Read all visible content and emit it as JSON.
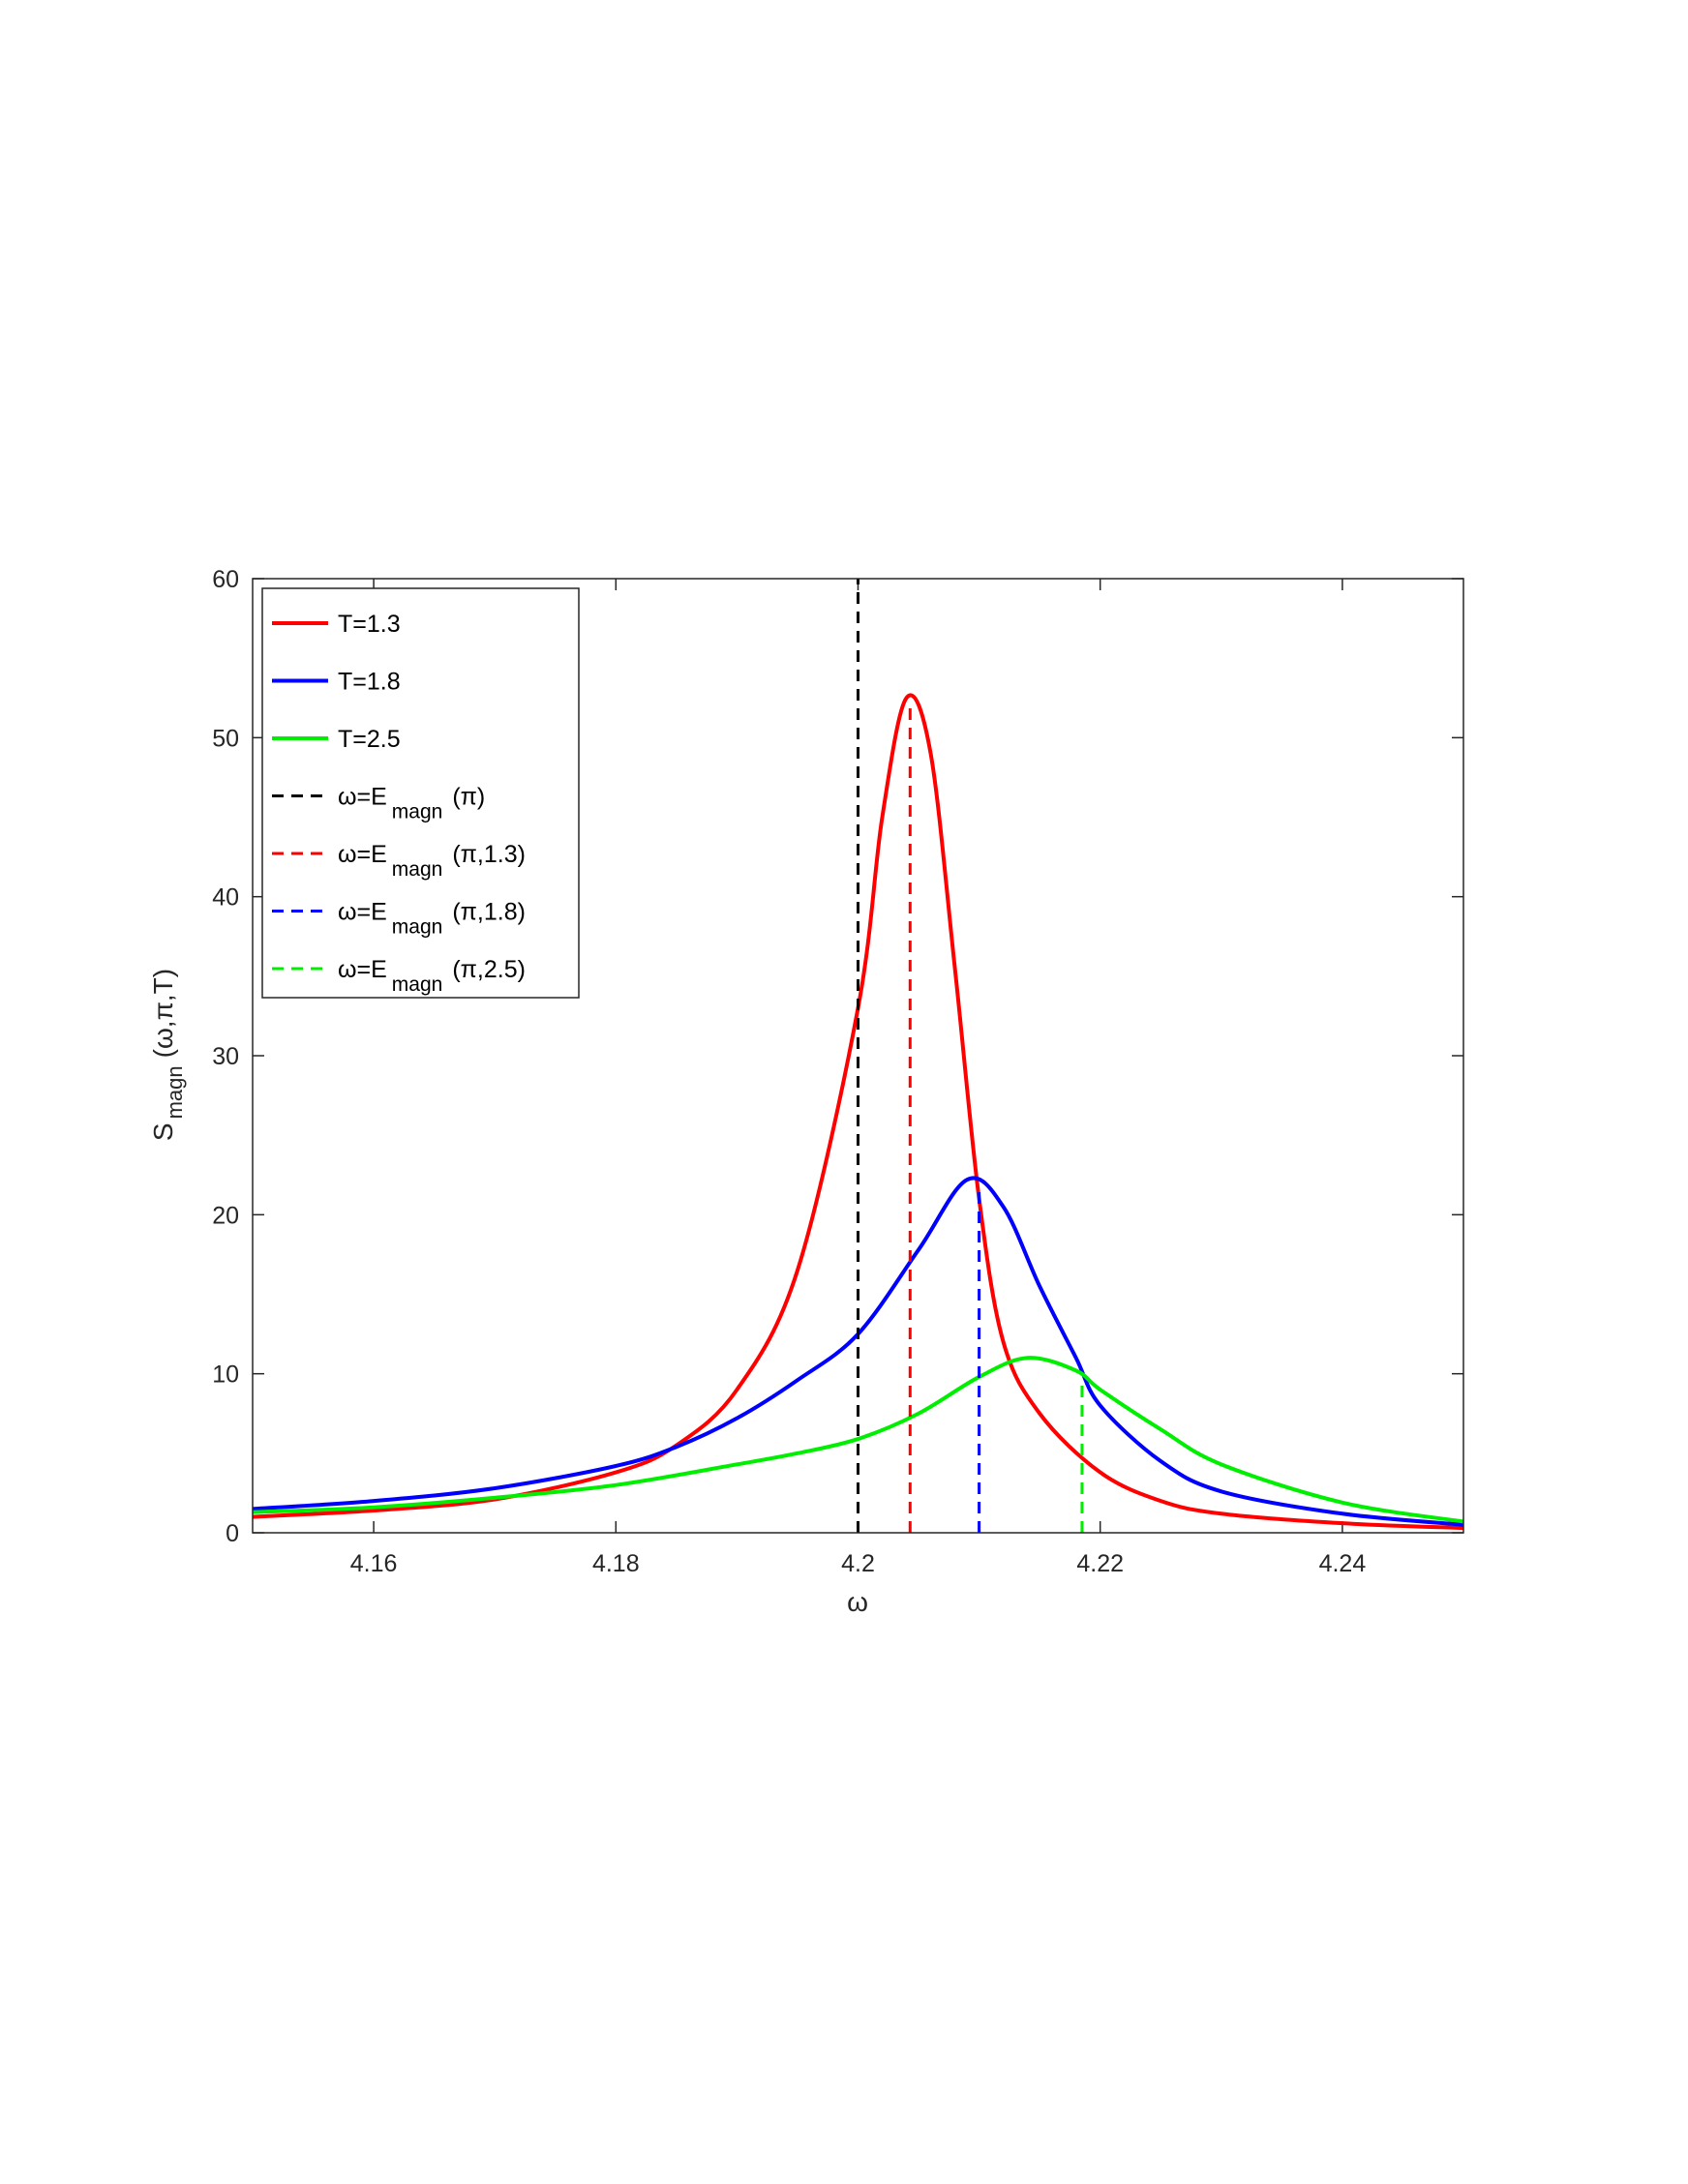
{
  "chart_data": {
    "type": "line",
    "title": "",
    "xlabel": "ω",
    "ylabel": {
      "main": "S",
      "sub": "magn",
      "args": "(ω,π,T)"
    },
    "xlim": [
      4.15,
      4.25
    ],
    "ylim": [
      0,
      60
    ],
    "xticks": [
      4.16,
      4.18,
      4.2,
      4.22,
      4.24
    ],
    "xtick_labels": [
      "4.16",
      "4.18",
      "4.2",
      "4.22",
      "4.24"
    ],
    "yticks": [
      0,
      10,
      20,
      30,
      40,
      50,
      60
    ],
    "ytick_labels": [
      "0",
      "10",
      "20",
      "30",
      "40",
      "50",
      "60"
    ],
    "grid": false,
    "legend_position": "top-left",
    "series": [
      {
        "name": "T=1.3",
        "color": "#ff0000",
        "style": "solid",
        "x": [
          4.15,
          4.16,
          4.17,
          4.18,
          4.185,
          4.19,
          4.195,
          4.2,
          4.202,
          4.204,
          4.206,
          4.208,
          4.21,
          4.212,
          4.215,
          4.22,
          4.225,
          4.23,
          4.24,
          4.25
        ],
        "y": [
          1.0,
          1.4,
          2.1,
          3.8,
          5.5,
          9.0,
          16.5,
          33.0,
          45.0,
          52.5,
          49.0,
          35.5,
          21.0,
          12.0,
          7.5,
          3.8,
          2.0,
          1.2,
          0.6,
          0.3
        ]
      },
      {
        "name": "T=1.8",
        "color": "#0000ff",
        "style": "solid",
        "x": [
          4.15,
          4.16,
          4.17,
          4.18,
          4.185,
          4.19,
          4.195,
          4.2,
          4.205,
          4.209,
          4.212,
          4.215,
          4.218,
          4.22,
          4.225,
          4.23,
          4.24,
          4.25
        ],
        "y": [
          1.5,
          2.0,
          2.8,
          4.2,
          5.4,
          7.2,
          9.6,
          12.5,
          17.8,
          22.2,
          20.5,
          15.5,
          11.0,
          8.0,
          4.5,
          2.6,
          1.2,
          0.5
        ]
      },
      {
        "name": "T=2.5",
        "color": "#00ee00",
        "style": "solid",
        "x": [
          4.15,
          4.16,
          4.17,
          4.18,
          4.19,
          4.195,
          4.2,
          4.205,
          4.21,
          4.214,
          4.218,
          4.22,
          4.225,
          4.23,
          4.24,
          4.25
        ],
        "y": [
          1.3,
          1.6,
          2.2,
          3.0,
          4.3,
          5.0,
          5.9,
          7.5,
          9.8,
          11.0,
          10.2,
          9.0,
          6.5,
          4.3,
          1.9,
          0.7
        ]
      }
    ],
    "reference_lines": [
      {
        "name": "ω=E magn (π)",
        "label_main": "ω=E",
        "label_sub": "magn",
        "label_args": "(π)",
        "color": "#000000",
        "style": "dashed",
        "x": 4.2,
        "y_top": 60
      },
      {
        "name": "ω=E magn (π,1.3)",
        "label_main": "ω=E",
        "label_sub": "magn",
        "label_args": "(π,1.3)",
        "color": "#ff0000",
        "style": "dashed",
        "x": 4.2043,
        "y_top": 52
      },
      {
        "name": "ω=E magn (π,1.8)",
        "label_main": "ω=E",
        "label_sub": "magn",
        "label_args": "(π,1.8)",
        "color": "#0000ff",
        "style": "dashed",
        "x": 4.21,
        "y_top": 21.5
      },
      {
        "name": "ω=E magn (π,2.5)",
        "label_main": "ω=E",
        "label_sub": "magn",
        "label_args": "(π,2.5)",
        "color": "#00ee00",
        "style": "dashed",
        "x": 4.2185,
        "y_top": 9.6
      }
    ]
  }
}
